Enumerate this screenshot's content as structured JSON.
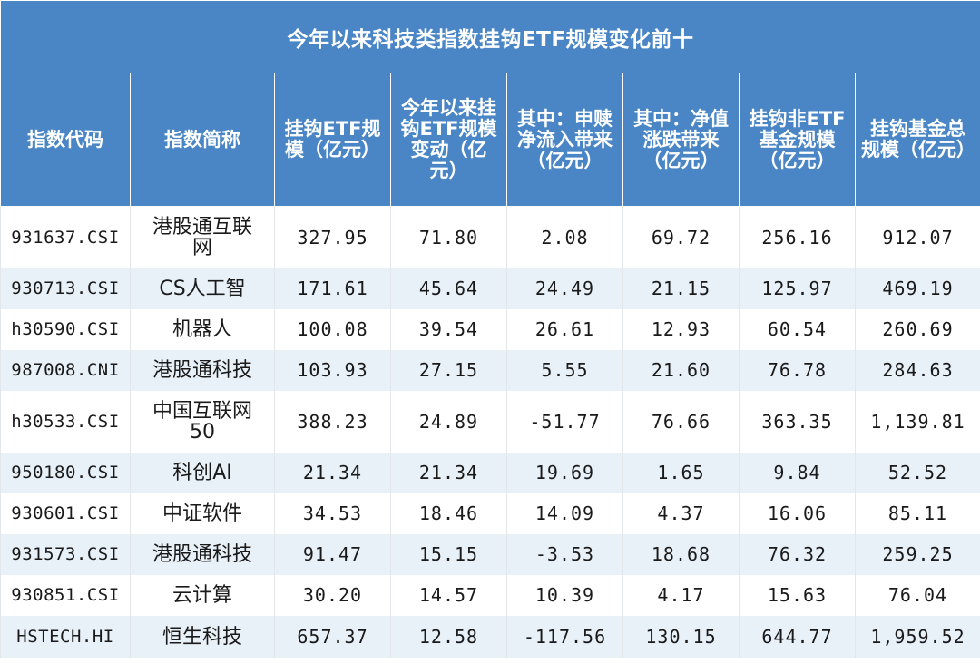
{
  "table": {
    "title": "今年以来科技类指数挂钩ETF规模变化前十",
    "headers": [
      "指数代码",
      "指数简称",
      "挂钩ETF规模（亿元）",
      "今年以来挂钩ETF规模变动（亿元）",
      "其中：申赎净流入带来（亿元）",
      "其中：净值涨跌带来（亿元）",
      "挂钩非ETF基金规模（亿元）",
      "挂钩基金总规模（亿元）"
    ],
    "rows": [
      {
        "code": "931637.CSI",
        "name": "港股通互联网",
        "etf_size": "327.95",
        "change": "71.80",
        "net_flow": "2.08",
        "nav_change": "69.72",
        "non_etf": "256.16",
        "total": "912.07"
      },
      {
        "code": "930713.CSI",
        "name": "CS人工智",
        "etf_size": "171.61",
        "change": "45.64",
        "net_flow": "24.49",
        "nav_change": "21.15",
        "non_etf": "125.97",
        "total": "469.19"
      },
      {
        "code": "h30590.CSI",
        "name": "机器人",
        "etf_size": "100.08",
        "change": "39.54",
        "net_flow": "26.61",
        "nav_change": "12.93",
        "non_etf": "60.54",
        "total": "260.69"
      },
      {
        "code": "987008.CNI",
        "name": "港股通科技",
        "etf_size": "103.93",
        "change": "27.15",
        "net_flow": "5.55",
        "nav_change": "21.60",
        "non_etf": "76.78",
        "total": "284.63"
      },
      {
        "code": "h30533.CSI",
        "name": "中国互联网50",
        "etf_size": "388.23",
        "change": "24.89",
        "net_flow": "-51.77",
        "nav_change": "76.66",
        "non_etf": "363.35",
        "total": "1,139.81"
      },
      {
        "code": "950180.CSI",
        "name": "科创AI",
        "etf_size": "21.34",
        "change": "21.34",
        "net_flow": "19.69",
        "nav_change": "1.65",
        "non_etf": "9.84",
        "total": "52.52"
      },
      {
        "code": "930601.CSI",
        "name": "中证软件",
        "etf_size": "34.53",
        "change": "18.46",
        "net_flow": "14.09",
        "nav_change": "4.37",
        "non_etf": "16.06",
        "total": "85.11"
      },
      {
        "code": "931573.CSI",
        "name": "港股通科技",
        "etf_size": "91.47",
        "change": "15.15",
        "net_flow": "-3.53",
        "nav_change": "18.68",
        "non_etf": "76.32",
        "total": "259.25"
      },
      {
        "code": "930851.CSI",
        "name": "云计算",
        "etf_size": "30.20",
        "change": "14.57",
        "net_flow": "10.39",
        "nav_change": "4.17",
        "non_etf": "15.63",
        "total": "76.04"
      },
      {
        "code": "HSTECH.HI",
        "name": "恒生科技",
        "etf_size": "657.37",
        "change": "12.58",
        "net_flow": "-117.56",
        "nav_change": "130.15",
        "non_etf": "644.77",
        "total": "1,959.52"
      }
    ]
  }
}
